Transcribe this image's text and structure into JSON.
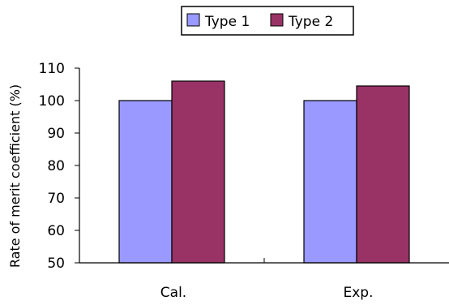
{
  "chart_data": {
    "type": "bar",
    "categories": [
      "Cal.",
      "Exp."
    ],
    "series": [
      {
        "name": "Type 1",
        "values": [
          100,
          100
        ]
      },
      {
        "name": "Type 2",
        "values": [
          106,
          104.5
        ]
      }
    ],
    "ylabel": "Rate of merit coefficient (%)",
    "ylim": [
      50,
      110
    ],
    "yticks": [
      "50",
      "60",
      "70",
      "80",
      "90",
      "100",
      "110"
    ],
    "grid": false,
    "legend_position": "top-center",
    "colors": {
      "Type 1": "#9999ff",
      "Type 2": "#993366"
    }
  }
}
